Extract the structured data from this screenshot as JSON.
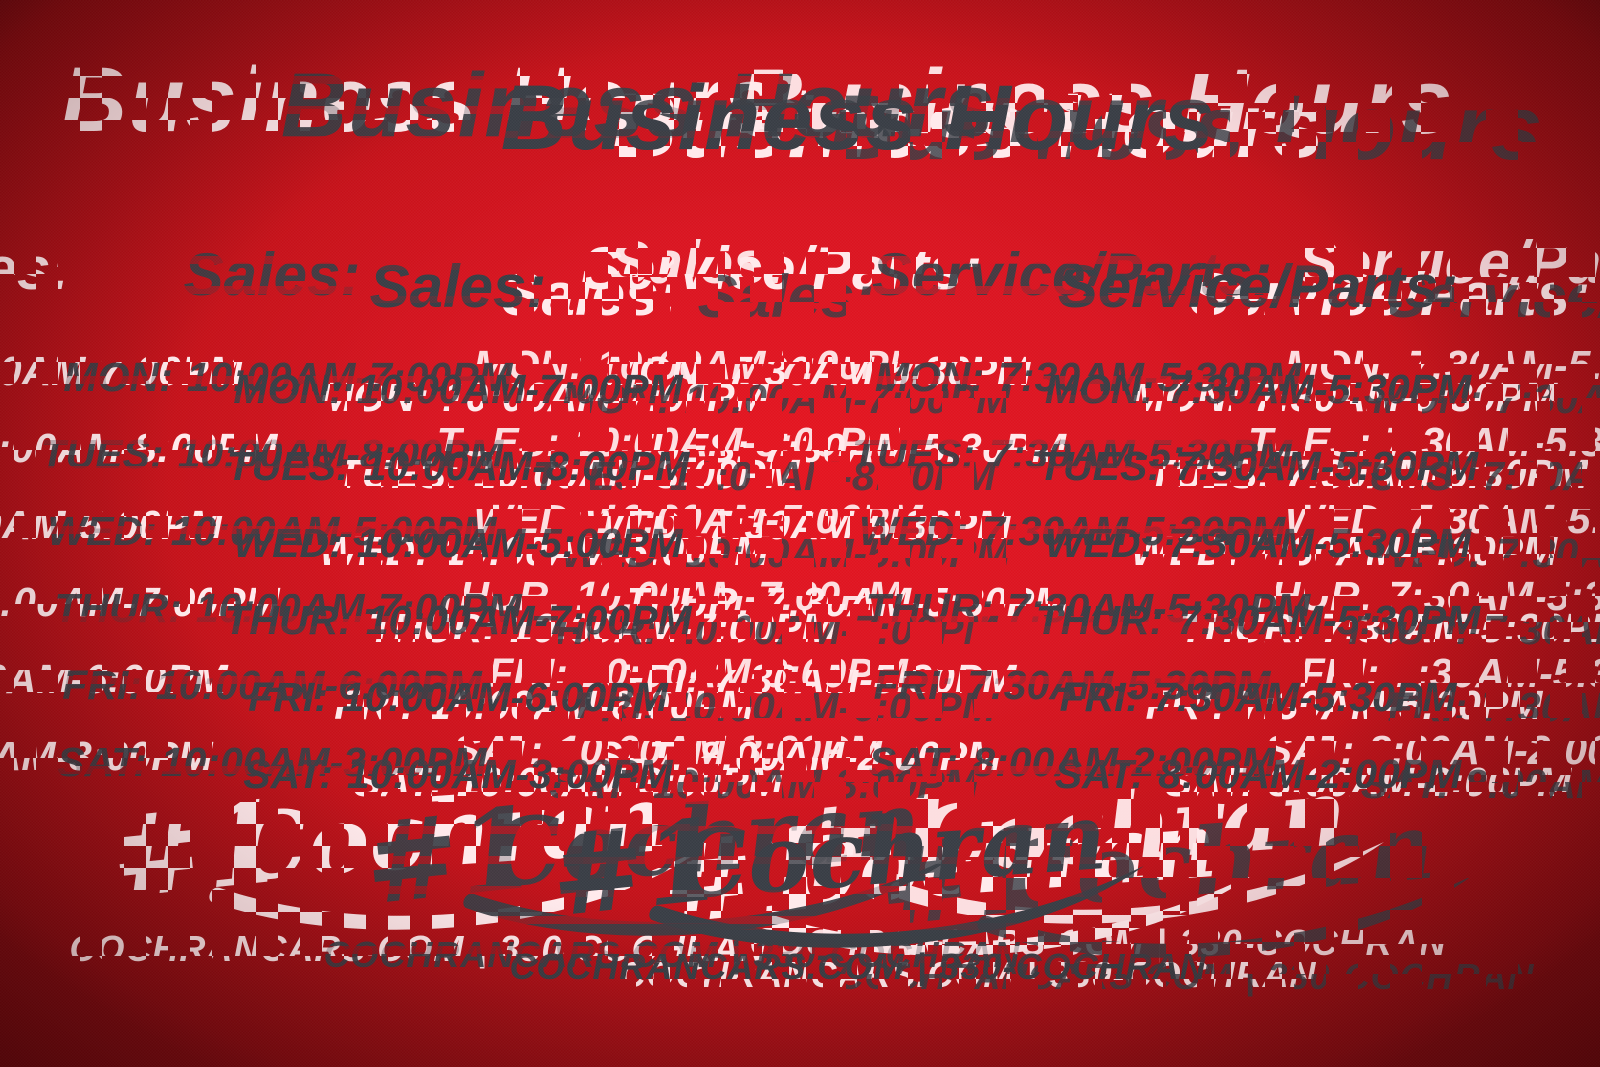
{
  "title": "Business Hours",
  "columns": {
    "sales": {
      "header": "Sales:",
      "rows": [
        {
          "day": "MON:",
          "hours": "10:00AM-7:00PM"
        },
        {
          "day": "TUES:",
          "hours": "10:00AM-8:00PM"
        },
        {
          "day": "WED:",
          "hours": "10:00AM-5:00PM"
        },
        {
          "day": "THUR:",
          "hours": "10:00AM-7:00PM"
        },
        {
          "day": "FRI:",
          "hours": "10:00AM-6:00PM"
        },
        {
          "day": "SAT:",
          "hours": "10:00AM-3:00PM"
        }
      ]
    },
    "service": {
      "header": "Service/Parts:",
      "rows": [
        {
          "day": "MON:",
          "hours": "7:30AM-5:30PM"
        },
        {
          "day": "TUES:",
          "hours": "7:30AM-5:30PM"
        },
        {
          "day": "WED:",
          "hours": "7:30AM-5:30PM"
        },
        {
          "day": "THUR:",
          "hours": "7:30AM-5:30PM"
        },
        {
          "day": "FRI:",
          "hours": "7:30AM-5:30PM"
        },
        {
          "day": "SAT:",
          "hours": "8:00AM-2:00PM"
        }
      ]
    }
  },
  "logo": {
    "prefix": "#1",
    "name": "Cochran"
  },
  "footer": {
    "website": "COCHRANCARS.COM",
    "separator": "|",
    "phone": "330-COCHRAN"
  },
  "colors": {
    "background_red": "#da1420",
    "vignette_red": "#7a0a10",
    "text_dark": "#383d44",
    "text_ghost": "#ffe9eb"
  }
}
